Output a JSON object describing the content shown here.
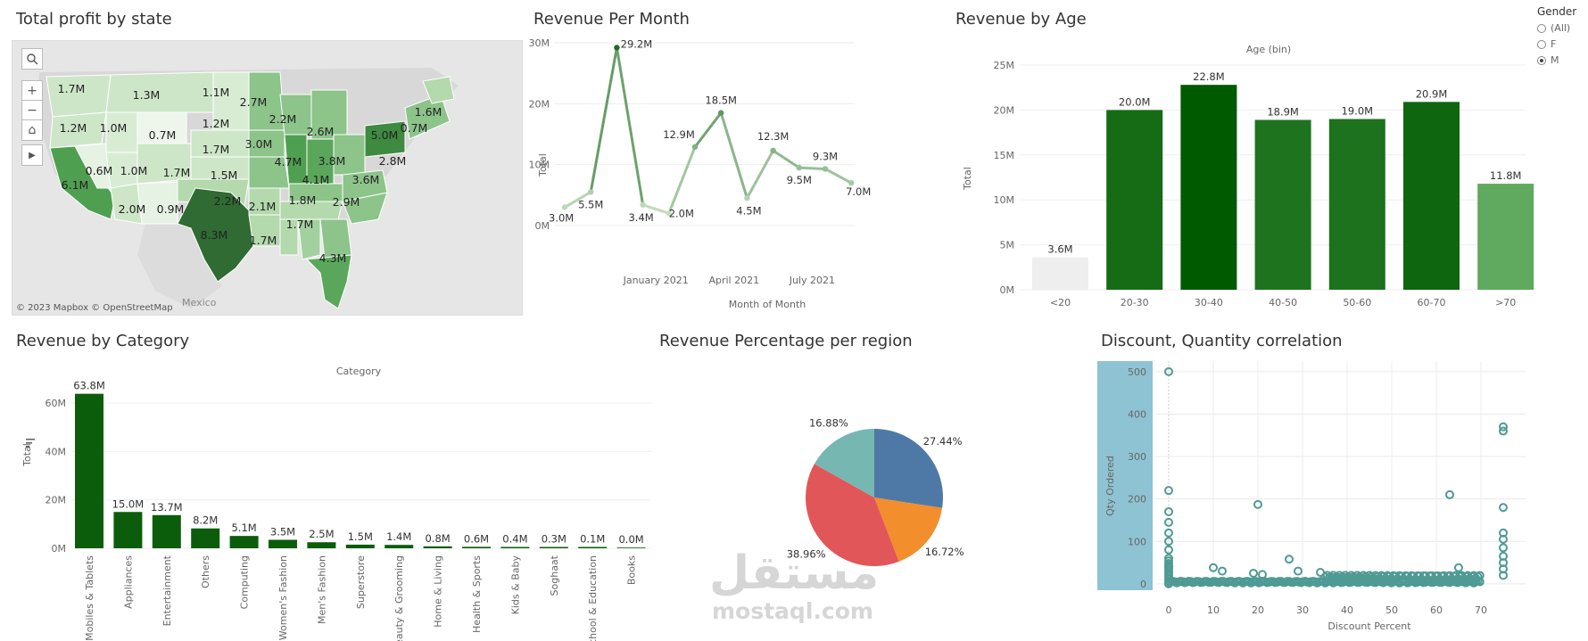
{
  "titles": {
    "map": "Total profit by state",
    "month": "Revenue Per Month",
    "age": "Revenue by Age",
    "category": "Revenue by Category",
    "region": "Revenue Percentage per region",
    "scatter": "Discount, Quantity correlation"
  },
  "map": {
    "attribution": "© 2023 Mapbox © OpenStreetMap",
    "country_label": "Mexico",
    "state_labels": [
      "1.7M",
      "1.3M",
      "1.1M",
      "1.6M",
      "1.2M",
      "1.0M",
      "0.7M",
      "1.2M",
      "2.7M",
      "2.2M",
      "0.7M",
      "5.0M",
      "1.7M",
      "3.0M",
      "2.6M",
      "0.6M",
      "1.0M",
      "1.7M",
      "1.5M",
      "4.7M",
      "3.8M",
      "2.8M",
      "6.1M",
      "4.1M",
      "3.6M",
      "2.0M",
      "0.9M",
      "2.2M",
      "2.1M",
      "1.8M",
      "2.9M",
      "8.3M",
      "1.7M",
      "1.7M",
      "4.3M"
    ]
  },
  "gender_filter": {
    "title": "Gender",
    "options": [
      "(All)",
      "F",
      "M"
    ],
    "selected": "M"
  },
  "chart_data": [
    {
      "type": "line",
      "title": "Revenue Per Month",
      "xlabel": "Month of Month",
      "ylabel": "Total",
      "x_tick_labels": [
        "January 2021",
        "April 2021",
        "July 2021"
      ],
      "y_ticks": [
        "0M",
        "10M",
        "20M",
        "30M"
      ],
      "ylim": [
        0,
        30
      ],
      "x": [
        "2020-10",
        "2020-11",
        "2020-12",
        "2021-01",
        "2021-02",
        "2021-03",
        "2021-04",
        "2021-05",
        "2021-06",
        "2021-07",
        "2021-08",
        "2021-09"
      ],
      "values": [
        3.0,
        5.5,
        29.2,
        3.4,
        2.0,
        12.9,
        18.5,
        4.5,
        12.3,
        9.5,
        9.3,
        7.0
      ],
      "labels": [
        "3.0M",
        "5.5M",
        "29.2M",
        "3.4M",
        "2.0M",
        "12.9M",
        "18.5M",
        "4.5M",
        "12.3M",
        "9.5M",
        "9.3M",
        "7.0M"
      ]
    },
    {
      "type": "bar",
      "title": "Revenue by Age",
      "header": "Age (bin)",
      "ylabel": "Total",
      "y_ticks": [
        "0M",
        "5M",
        "10M",
        "15M",
        "20M",
        "25M"
      ],
      "ylim": [
        0,
        25
      ],
      "categories": [
        "<20",
        "20-30",
        "30-40",
        "40-50",
        "50-60",
        "60-70",
        ">70"
      ],
      "values": [
        3.6,
        20.0,
        22.8,
        18.9,
        19.0,
        20.9,
        11.8
      ],
      "labels": [
        "3.6M",
        "20.0M",
        "22.8M",
        "18.9M",
        "19.0M",
        "20.9M",
        "11.8M"
      ]
    },
    {
      "type": "bar",
      "title": "Revenue by Category",
      "header": "Category",
      "ylabel": "Total",
      "y_ticks": [
        "0M",
        "20M",
        "40M",
        "60M"
      ],
      "ylim": [
        0,
        67
      ],
      "categories": [
        "Mobiles & Tablets",
        "Appliances",
        "Entertainment",
        "Others",
        "Computing",
        "Women's Fashion",
        "Men's Fashion",
        "Superstore",
        "Beauty & Grooming",
        "Home & Living",
        "Health & Sports",
        "Kids & Baby",
        "Soghaat",
        "School & Education",
        "Books"
      ],
      "values": [
        63.8,
        15.0,
        13.7,
        8.2,
        5.1,
        3.5,
        2.5,
        1.5,
        1.4,
        0.8,
        0.6,
        0.4,
        0.3,
        0.1,
        0.0
      ],
      "labels": [
        "63.8M",
        "15.0M",
        "13.7M",
        "8.2M",
        "5.1M",
        "3.5M",
        "2.5M",
        "1.5M",
        "1.4M",
        "0.8M",
        "0.6M",
        "0.4M",
        "0.3M",
        "0.1M",
        "0.0M"
      ]
    },
    {
      "type": "pie",
      "title": "Revenue Percentage per region",
      "values": [
        27.44,
        16.72,
        38.96,
        16.88
      ],
      "labels": [
        "27.44%",
        "16.72%",
        "38.96%",
        "16.88%"
      ],
      "colors": [
        "#4e79a7",
        "#f28e2b",
        "#e15759",
        "#76b7b2"
      ]
    },
    {
      "type": "scatter",
      "title": "Discount, Quantity correlation",
      "xlabel": "Discount Percent",
      "ylabel": "Qty Ordered",
      "x_ticks": [
        "0",
        "10",
        "20",
        "30",
        "40",
        "50",
        "60",
        "70"
      ],
      "y_ticks": [
        "0",
        "100",
        "200",
        "300",
        "400",
        "500"
      ],
      "xlim": [
        -3,
        80
      ],
      "ylim": [
        -15,
        525
      ],
      "outliers": [
        [
          0,
          500
        ],
        [
          0,
          220
        ],
        [
          0,
          170
        ],
        [
          0,
          145
        ],
        [
          0,
          120
        ],
        [
          0,
          100
        ],
        [
          0,
          80
        ],
        [
          0,
          60
        ],
        [
          0,
          40
        ],
        [
          10,
          38
        ],
        [
          12,
          30
        ],
        [
          20,
          187
        ],
        [
          19,
          25
        ],
        [
          21,
          22
        ],
        [
          27,
          58
        ],
        [
          29,
          30
        ],
        [
          34,
          27
        ],
        [
          63,
          210
        ],
        [
          65,
          38
        ],
        [
          75,
          370
        ],
        [
          75,
          360
        ],
        [
          75,
          180
        ],
        [
          75,
          120
        ],
        [
          75,
          105
        ],
        [
          75,
          85
        ],
        [
          75,
          65
        ],
        [
          75,
          50
        ],
        [
          75,
          35
        ],
        [
          75,
          20
        ]
      ]
    }
  ],
  "watermark": {
    "arabic": "مستقل",
    "latin": "mostaql.com"
  },
  "colors": {
    "dark_green": "#0b5d0b",
    "teal_marker": "#4f9a94",
    "scatter_highlight": "#8ec3d3"
  }
}
